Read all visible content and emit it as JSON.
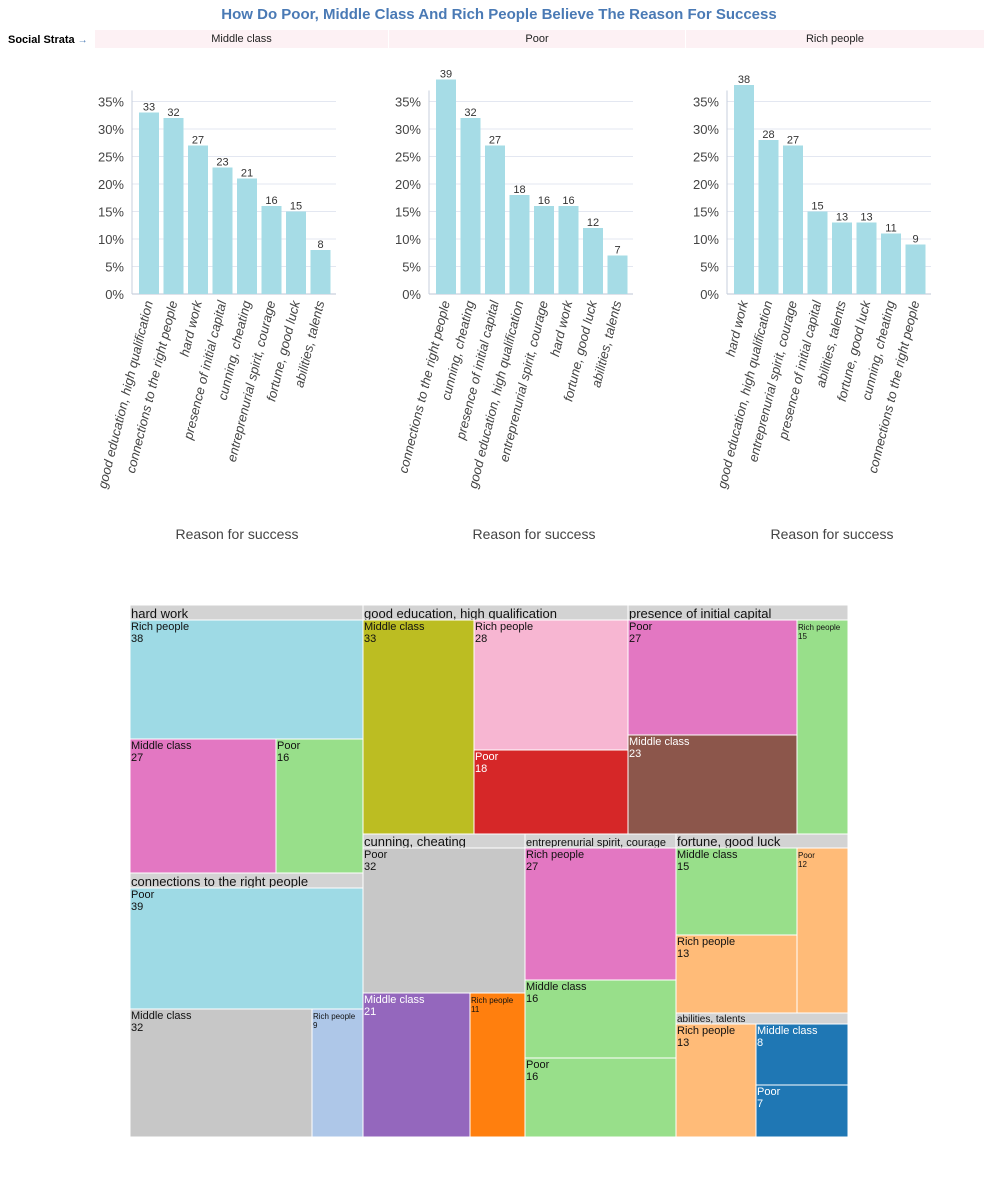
{
  "title": "How Do Poor, Middle Class And Rich People Believe The Reason For Success",
  "strata": {
    "label": "Social Strata",
    "arrow": "→"
  },
  "facets": [
    "Middle class",
    "Poor",
    "Rich people"
  ],
  "colors": {
    "title": "#4a7ab5",
    "bar": "#a6dce6",
    "header_bg": "#fdf1f4",
    "group_header": "#d3d3d3"
  },
  "chart_data": [
    {
      "type": "bar",
      "title": "Middle class",
      "xlabel": "Reason for success",
      "ylabel": "",
      "ylim": [
        0,
        39
      ],
      "yticks": [
        "0%",
        "5%",
        "10%",
        "15%",
        "20%",
        "25%",
        "30%",
        "35%"
      ],
      "categories": [
        "good education, high qualification",
        "connections to the right people",
        "hard work",
        "presence of initial capital",
        "cunning, cheating",
        "entreprenurial spirit, courage",
        "fortune, good luck",
        "abilities, talents"
      ],
      "values": [
        33,
        32,
        27,
        23,
        21,
        16,
        15,
        8
      ]
    },
    {
      "type": "bar",
      "title": "Poor",
      "xlabel": "Reason for success",
      "ylabel": "",
      "ylim": [
        0,
        39
      ],
      "yticks": [
        "0%",
        "5%",
        "10%",
        "15%",
        "20%",
        "25%",
        "30%",
        "35%"
      ],
      "categories": [
        "connections to the right people",
        "cunning, cheating",
        "presence of initial capital",
        "good education, high qualification",
        "entreprenurial spirit, courage",
        "hard work",
        "fortune, good luck",
        "abilities, talents"
      ],
      "values": [
        39,
        32,
        27,
        18,
        16,
        16,
        12,
        7
      ]
    },
    {
      "type": "bar",
      "title": "Rich people",
      "xlabel": "Reason for success",
      "ylabel": "",
      "ylim": [
        0,
        39
      ],
      "yticks": [
        "0%",
        "5%",
        "10%",
        "15%",
        "20%",
        "25%",
        "30%",
        "35%"
      ],
      "categories": [
        "hard work",
        "good education, high qualification",
        "entreprenurial spirit, courage",
        "presence of initial capital",
        "abilities, talents",
        "fortune, good luck",
        "cunning, cheating",
        "connections to the right people"
      ],
      "values": [
        38,
        28,
        27,
        15,
        13,
        13,
        11,
        9
      ]
    },
    {
      "type": "treemap",
      "groups": [
        {
          "name": "hard work",
          "children": [
            {
              "name": "Rich people",
              "value": 38,
              "color": "#9edae5"
            },
            {
              "name": "Middle class",
              "value": 27,
              "color": "#e377c2"
            },
            {
              "name": "Poor",
              "value": 16,
              "color": "#98df8a"
            }
          ]
        },
        {
          "name": "connections to the right people",
          "children": [
            {
              "name": "Poor",
              "value": 39,
              "color": "#9edae5"
            },
            {
              "name": "Middle class",
              "value": 32,
              "color": "#c7c7c7"
            },
            {
              "name": "Rich people",
              "value": 9,
              "color": "#aec7e8"
            }
          ]
        },
        {
          "name": "good education, high qualification",
          "children": [
            {
              "name": "Middle class",
              "value": 33,
              "color": "#bcbd22"
            },
            {
              "name": "Rich people",
              "value": 28,
              "color": "#f7b6d2"
            },
            {
              "name": "Poor",
              "value": 18,
              "color": "#d62728"
            }
          ]
        },
        {
          "name": "presence of initial capital",
          "children": [
            {
              "name": "Poor",
              "value": 27,
              "color": "#e377c2"
            },
            {
              "name": "Middle class",
              "value": 23,
              "color": "#8c564b"
            },
            {
              "name": "Rich people",
              "value": 15,
              "color": "#98df8a"
            }
          ]
        },
        {
          "name": "cunning, cheating",
          "children": [
            {
              "name": "Poor",
              "value": 32,
              "color": "#c7c7c7"
            },
            {
              "name": "Middle class",
              "value": 21,
              "color": "#9467bd"
            },
            {
              "name": "Rich people",
              "value": 11,
              "color": "#ff7f0e"
            }
          ]
        },
        {
          "name": "entreprenurial spirit, courage",
          "children": [
            {
              "name": "Rich people",
              "value": 27,
              "color": "#e377c2"
            },
            {
              "name": "Middle class",
              "value": 16,
              "color": "#98df8a"
            },
            {
              "name": "Poor",
              "value": 16,
              "color": "#98df8a"
            }
          ]
        },
        {
          "name": "fortune, good luck",
          "children": [
            {
              "name": "Middle class",
              "value": 15,
              "color": "#98df8a"
            },
            {
              "name": "Rich people",
              "value": 13,
              "color": "#ffbb78"
            },
            {
              "name": "Poor",
              "value": 12,
              "color": "#ffbb78"
            }
          ]
        },
        {
          "name": "abilities, talents",
          "children": [
            {
              "name": "Rich people",
              "value": 13,
              "color": "#ffbb78"
            },
            {
              "name": "Middle class",
              "value": 8,
              "color": "#1f77b4"
            },
            {
              "name": "Poor",
              "value": 7,
              "color": "#1f77b4"
            }
          ]
        }
      ]
    }
  ]
}
